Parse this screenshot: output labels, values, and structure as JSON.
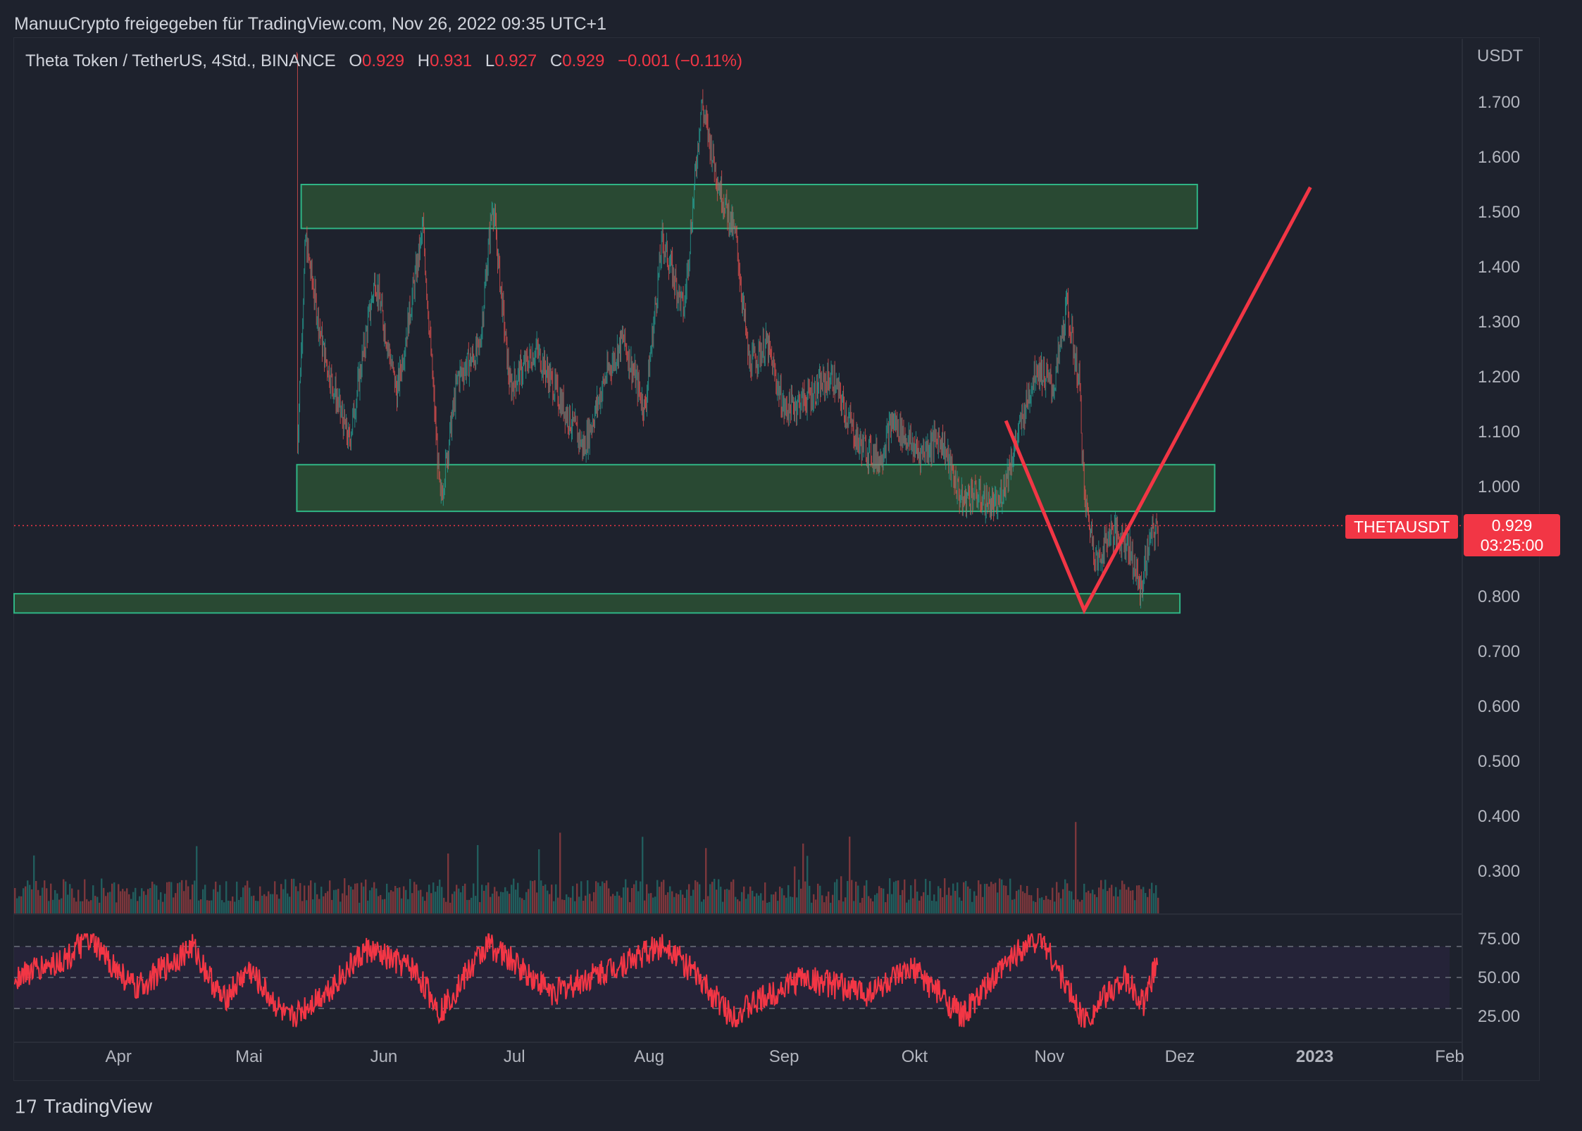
{
  "header": {
    "attribution": "ManuuCrypto freigegeben für TradingView.com, Nov 26, 2022 09:35 UTC+1"
  },
  "legend": {
    "symbol": "Theta Token / TetherUS, 4Std., BINANCE",
    "open_label": "O",
    "open": "0.929",
    "high_label": "H",
    "high": "0.931",
    "low_label": "L",
    "low": "0.927",
    "close_label": "C",
    "close": "0.929",
    "change": "−0.001 (−0.11%)"
  },
  "price_axis": {
    "unit": "USDT",
    "ticks": [
      "1.700",
      "1.600",
      "1.500",
      "1.400",
      "1.300",
      "1.200",
      "1.100",
      "1.000",
      "0.800",
      "0.700",
      "0.600",
      "0.500",
      "0.400",
      "0.300"
    ]
  },
  "current": {
    "symbol_tag": "THETAUSDT",
    "price": "0.929",
    "countdown": "03:25:00"
  },
  "time_axis": {
    "labels": [
      "Apr",
      "Mai",
      "Jun",
      "Jul",
      "Aug",
      "Sep",
      "Okt",
      "Nov",
      "Dez",
      "2023",
      "Feb"
    ]
  },
  "rsi_axis": {
    "ticks": [
      "75.00",
      "50.00",
      "25.00"
    ]
  },
  "footer": {
    "brand": "TradingView"
  },
  "colors": {
    "background": "#1e222d",
    "bull": "#26a69a",
    "bear": "#ef5350",
    "zone_fill": "#2b5035",
    "zone_border": "#2fb585",
    "drawing": "#f23645",
    "rsi_line": "#f23645",
    "rsi_band": "#2a2540"
  },
  "chart_data": [
    {
      "type": "candlestick",
      "title": "Theta Token / TetherUS, 4Std., BINANCE",
      "ylabel": "USDT",
      "ylim": [
        0.25,
        1.8
      ],
      "x_range": [
        "2022-03-08",
        "2023-02-01"
      ],
      "price_path": [
        {
          "date": "2022-05-12",
          "price": 1.78
        },
        {
          "date": "2022-05-12",
          "price": 1.05
        },
        {
          "date": "2022-05-14",
          "price": 1.45
        },
        {
          "date": "2022-05-18",
          "price": 1.25
        },
        {
          "date": "2022-05-24",
          "price": 1.08
        },
        {
          "date": "2022-05-30",
          "price": 1.38
        },
        {
          "date": "2022-06-04",
          "price": 1.17
        },
        {
          "date": "2022-06-10",
          "price": 1.47
        },
        {
          "date": "2022-06-14",
          "price": 0.97
        },
        {
          "date": "2022-06-18",
          "price": 1.2
        },
        {
          "date": "2022-06-23",
          "price": 1.25
        },
        {
          "date": "2022-06-26",
          "price": 1.52
        },
        {
          "date": "2022-06-30",
          "price": 1.18
        },
        {
          "date": "2022-07-06",
          "price": 1.25
        },
        {
          "date": "2022-07-12",
          "price": 1.15
        },
        {
          "date": "2022-07-17",
          "price": 1.07
        },
        {
          "date": "2022-07-22",
          "price": 1.2
        },
        {
          "date": "2022-07-26",
          "price": 1.27
        },
        {
          "date": "2022-07-31",
          "price": 1.14
        },
        {
          "date": "2022-08-04",
          "price": 1.45
        },
        {
          "date": "2022-08-09",
          "price": 1.32
        },
        {
          "date": "2022-08-13",
          "price": 1.7
        },
        {
          "date": "2022-08-17",
          "price": 1.55
        },
        {
          "date": "2022-08-21",
          "price": 1.45
        },
        {
          "date": "2022-08-24",
          "price": 1.22
        },
        {
          "date": "2022-08-28",
          "price": 1.26
        },
        {
          "date": "2022-09-01",
          "price": 1.14
        },
        {
          "date": "2022-09-06",
          "price": 1.16
        },
        {
          "date": "2022-09-12",
          "price": 1.2
        },
        {
          "date": "2022-09-18",
          "price": 1.08
        },
        {
          "date": "2022-09-23",
          "price": 1.05
        },
        {
          "date": "2022-09-26",
          "price": 1.12
        },
        {
          "date": "2022-10-02",
          "price": 1.06
        },
        {
          "date": "2022-10-07",
          "price": 1.09
        },
        {
          "date": "2022-10-12",
          "price": 0.97
        },
        {
          "date": "2022-10-14",
          "price": 0.99
        },
        {
          "date": "2022-10-20",
          "price": 0.96
        },
        {
          "date": "2022-10-25",
          "price": 1.1
        },
        {
          "date": "2022-10-29",
          "price": 1.22
        },
        {
          "date": "2022-11-02",
          "price": 1.18
        },
        {
          "date": "2022-11-05",
          "price": 1.33
        },
        {
          "date": "2022-11-08",
          "price": 1.18
        },
        {
          "date": "2022-11-09",
          "price": 0.98
        },
        {
          "date": "2022-11-12",
          "price": 0.86
        },
        {
          "date": "2022-11-15",
          "price": 0.92
        },
        {
          "date": "2022-11-19",
          "price": 0.9
        },
        {
          "date": "2022-11-22",
          "price": 0.81
        },
        {
          "date": "2022-11-24",
          "price": 0.9
        },
        {
          "date": "2022-11-26",
          "price": 0.929
        }
      ],
      "current_price": 0.929,
      "zones": [
        {
          "from": "2022-05-13",
          "to": "2022-12-05",
          "top": 1.55,
          "bottom": 1.47
        },
        {
          "from": "2022-05-12",
          "to": "2022-12-09",
          "top": 1.04,
          "bottom": 0.955
        },
        {
          "from": "2022-03-08",
          "to": "2022-12-01",
          "top": 0.805,
          "bottom": 0.77
        }
      ],
      "projection_path": [
        {
          "date": "2022-10-22",
          "price": 1.12
        },
        {
          "date": "2022-11-09",
          "price": 0.775
        },
        {
          "date": "2022-12-31",
          "price": 1.545
        }
      ]
    },
    {
      "type": "bar",
      "title": "",
      "series": [
        {
          "values": []
        }
      ],
      "note_source": "volume histogram without printed values"
    },
    {
      "type": "line",
      "ylim": [
        15,
        80
      ],
      "band": [
        30,
        70
      ],
      "midline": 50,
      "x_range": [
        "2022-03-08",
        "2023-02-01"
      ],
      "values_sampled": [
        {
          "date": "2022-03-08",
          "v": 50
        },
        {
          "date": "2022-03-20",
          "v": 62
        },
        {
          "date": "2022-03-25",
          "v": 75
        },
        {
          "date": "2022-04-05",
          "v": 42
        },
        {
          "date": "2022-04-18",
          "v": 70
        },
        {
          "date": "2022-04-25",
          "v": 35
        },
        {
          "date": "2022-05-01",
          "v": 55
        },
        {
          "date": "2022-05-10",
          "v": 22
        },
        {
          "date": "2022-05-20",
          "v": 44
        },
        {
          "date": "2022-05-28",
          "v": 68
        },
        {
          "date": "2022-06-08",
          "v": 55
        },
        {
          "date": "2022-06-14",
          "v": 28
        },
        {
          "date": "2022-06-25",
          "v": 72
        },
        {
          "date": "2022-07-10",
          "v": 40
        },
        {
          "date": "2022-07-25",
          "v": 58
        },
        {
          "date": "2022-08-05",
          "v": 72
        },
        {
          "date": "2022-08-20",
          "v": 25
        },
        {
          "date": "2022-09-05",
          "v": 50
        },
        {
          "date": "2022-09-20",
          "v": 40
        },
        {
          "date": "2022-10-01",
          "v": 55
        },
        {
          "date": "2022-10-12",
          "v": 25
        },
        {
          "date": "2022-10-25",
          "v": 68
        },
        {
          "date": "2022-10-30",
          "v": 77
        },
        {
          "date": "2022-11-09",
          "v": 22
        },
        {
          "date": "2022-11-18",
          "v": 50
        },
        {
          "date": "2022-11-23",
          "v": 32
        },
        {
          "date": "2022-11-26",
          "v": 65
        }
      ]
    }
  ]
}
